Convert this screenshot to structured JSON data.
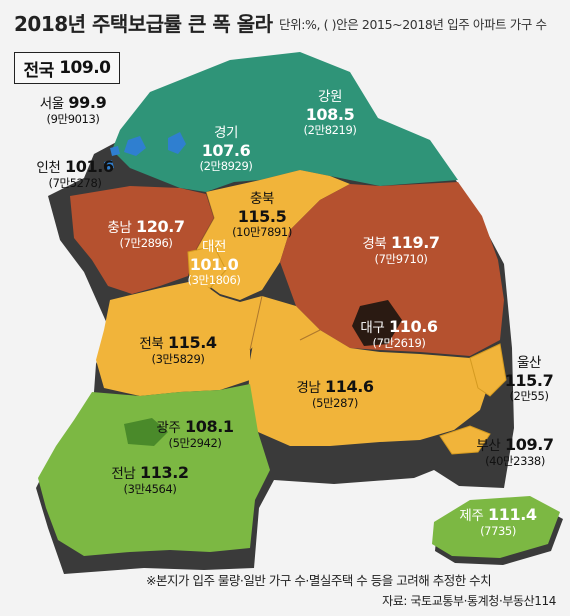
{
  "title": "2018년 주택보급률 큰 폭 올라",
  "subtitle": "단위:%, ( )안은 2015~2018년 입주 아파트 가구 수",
  "national": {
    "name": "전국",
    "value": "109.0"
  },
  "regions": {
    "seoul": {
      "name": "서울",
      "value": "99.9",
      "households": "(9만9013)"
    },
    "incheon": {
      "name": "인천",
      "value": "101.6",
      "households": "(7만5278)"
    },
    "gyeonggi": {
      "name": "경기",
      "value": "107.6",
      "households": "(2만8929)"
    },
    "gangwon": {
      "name": "강원",
      "value": "108.5",
      "households": "(2만8219)"
    },
    "chungnam": {
      "name": "충남",
      "value": "120.7",
      "households": "(7만2896)"
    },
    "chungbuk": {
      "name": "충북",
      "value": "115.5",
      "households": "(10만7891)"
    },
    "daejeon": {
      "name": "대전",
      "value": "101.0",
      "households": "(3만1806)"
    },
    "gyeongbuk": {
      "name": "경북",
      "value": "119.7",
      "households": "(7만9710)"
    },
    "daegu": {
      "name": "대구",
      "value": "110.6",
      "households": "(7만2619)"
    },
    "jeonbuk": {
      "name": "전북",
      "value": "115.4",
      "households": "(3만5829)"
    },
    "ulsan": {
      "name": "울산",
      "value": "115.7",
      "households": "(2만55)"
    },
    "gyeongnam": {
      "name": "경남",
      "value": "114.6",
      "households": "(5만287)"
    },
    "gwangju": {
      "name": "광주",
      "value": "108.1",
      "households": "(5만2942)"
    },
    "busan": {
      "name": "부산",
      "value": "109.7",
      "households": "(40만2338)"
    },
    "jeonnam": {
      "name": "전남",
      "value": "113.2",
      "households": "(3만4564)"
    },
    "jeju": {
      "name": "제주",
      "value": "111.4",
      "households": "(7735)"
    }
  },
  "note": "※본지가 입주 물량·일반 가구 수·멸실주택  수 등을 고려해  추정한 수치",
  "source": "자료: 국토교통부·통계청·부동산114",
  "colors": {
    "teal": "#2f9478",
    "rust": "#b5512f",
    "amber": "#f1b43a",
    "green": "#7cb843",
    "blue": "#2f7fd0"
  }
}
